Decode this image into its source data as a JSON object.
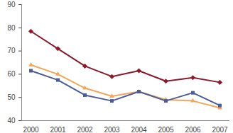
{
  "chart_data": {
    "type": "line",
    "categories": [
      "2000",
      "2001",
      "2002",
      "2003",
      "2004",
      "2005",
      "2006",
      "2007"
    ],
    "series": [
      {
        "color": "#8b1a2e",
        "marker": "diamond",
        "values": [
          78.5,
          71,
          63.5,
          59,
          61.5,
          57,
          58.5,
          56.5
        ]
      },
      {
        "color": "#f2a65a",
        "marker": "triangle",
        "values": [
          64,
          60,
          54,
          50.5,
          52.5,
          49,
          48.5,
          45.5
        ]
      },
      {
        "color": "#4a5c9c",
        "marker": "square",
        "values": [
          61.5,
          57.5,
          51,
          48.5,
          52.5,
          48.5,
          52,
          46.5
        ]
      }
    ],
    "ylim": [
      40,
      90
    ],
    "yticks": [
      40,
      50,
      60,
      70,
      80,
      90
    ],
    "grid": false
  }
}
